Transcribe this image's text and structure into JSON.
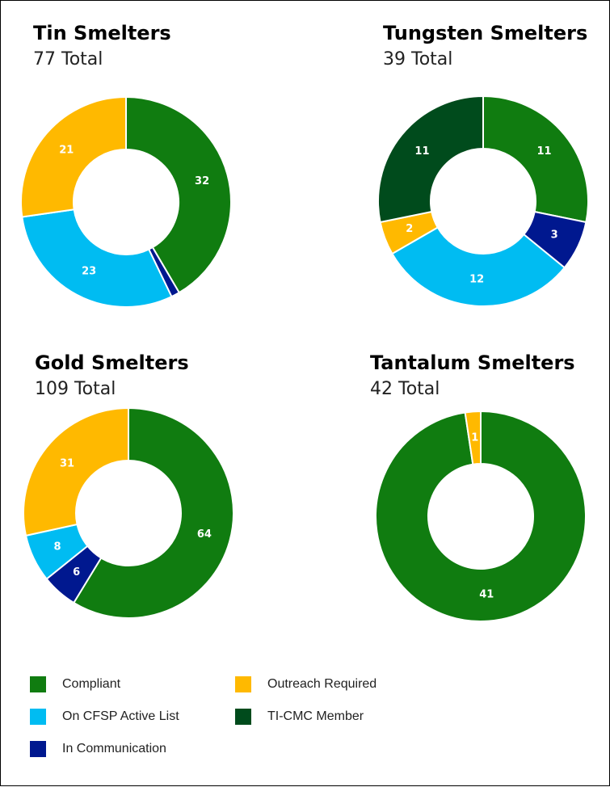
{
  "chart_data": [
    {
      "type": "pie",
      "title": "Tin Smelters",
      "subtitle": "77 Total",
      "categories": [
        "Compliant",
        "In Communication",
        "On CFSP Active List",
        "Outreach Required"
      ],
      "values": [
        32,
        1,
        23,
        21
      ],
      "labels": [
        "32",
        "",
        "23",
        "21"
      ],
      "colors": [
        "#107c10",
        "#00188f",
        "#00bcf2",
        "#ffb900"
      ]
    },
    {
      "type": "pie",
      "title": "Tungsten Smelters",
      "subtitle": "39 Total",
      "categories": [
        "Compliant",
        "In Communication",
        "On CFSP Active List",
        "Outreach Required",
        "TI-CMC Member"
      ],
      "values": [
        11,
        3,
        12,
        2,
        11
      ],
      "labels": [
        "11",
        "3",
        "12",
        "2",
        "11"
      ],
      "colors": [
        "#107c10",
        "#00188f",
        "#00bcf2",
        "#ffb900",
        "#004b1c"
      ]
    },
    {
      "type": "pie",
      "title": "Gold Smelters",
      "subtitle": "109 Total",
      "categories": [
        "Compliant",
        "In Communication",
        "On CFSP Active List",
        "Outreach Required"
      ],
      "values": [
        64,
        6,
        8,
        31
      ],
      "labels": [
        "64",
        "6",
        "8",
        "31"
      ],
      "colors": [
        "#107c10",
        "#00188f",
        "#00bcf2",
        "#ffb900"
      ]
    },
    {
      "type": "pie",
      "title": "Tantalum Smelters",
      "subtitle": "42 Total",
      "categories": [
        "Compliant",
        "Outreach Required"
      ],
      "values": [
        41,
        1
      ],
      "labels": [
        "41",
        "1"
      ],
      "colors": [
        "#107c10",
        "#ffb900"
      ]
    }
  ],
  "legend": {
    "position": "bottom-left",
    "items": [
      {
        "label": "Compliant",
        "color": "#107c10"
      },
      {
        "label": "Outreach Required",
        "color": "#ffb900"
      },
      {
        "label": "On CFSP Active List",
        "color": "#00bcf2"
      },
      {
        "label": "TI-CMC Member",
        "color": "#004b1c"
      },
      {
        "label": "In Communication",
        "color": "#00188f"
      }
    ]
  }
}
